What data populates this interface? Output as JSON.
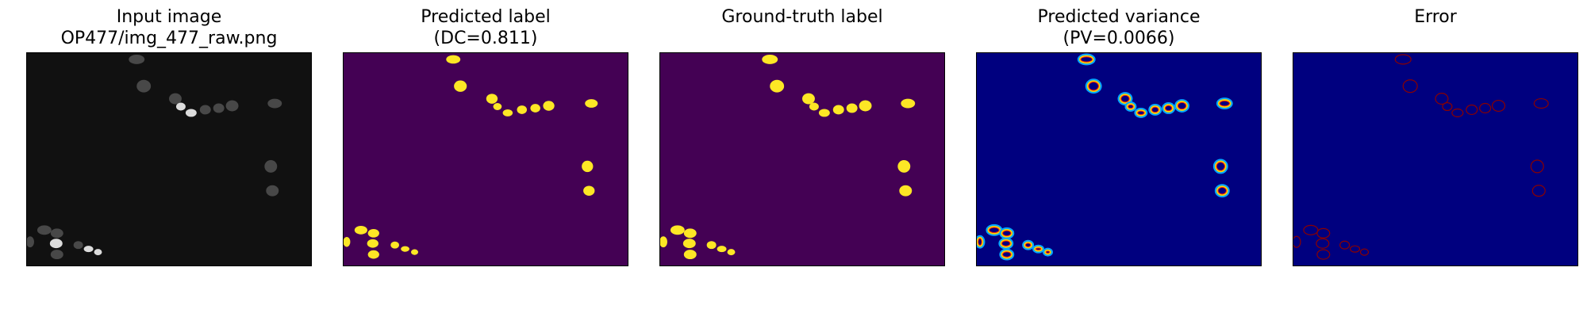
{
  "figure": {
    "panels": [
      {
        "title_line1": "Input image",
        "title_line2": "OP477/img_477_raw.png",
        "kind": "raw"
      },
      {
        "title_line1": "Predicted label",
        "title_line2": "(DC=0.811)",
        "kind": "prediction"
      },
      {
        "title_line1": "Ground-truth label",
        "title_line2": "",
        "kind": "ground-truth"
      },
      {
        "title_line1": "Predicted variance",
        "title_line2": "(PV=0.0066)",
        "kind": "variance"
      },
      {
        "title_line1": "Error",
        "title_line2": "",
        "kind": "error"
      }
    ]
  },
  "colors": {
    "raw_background": "#111111",
    "raw_cell": "#5f5f5f",
    "raw_cell_bright": "#e8e8e8",
    "label_background": "#440154",
    "label_foreground": "#fde725",
    "variance_background": "#00007f",
    "variance_ring_outer": "#00a6ff",
    "variance_ring_mid": "#ffd500",
    "variance_ring_inner": "#ff2000",
    "error_background": "#00007f",
    "error_outline": "#8b0000"
  }
}
